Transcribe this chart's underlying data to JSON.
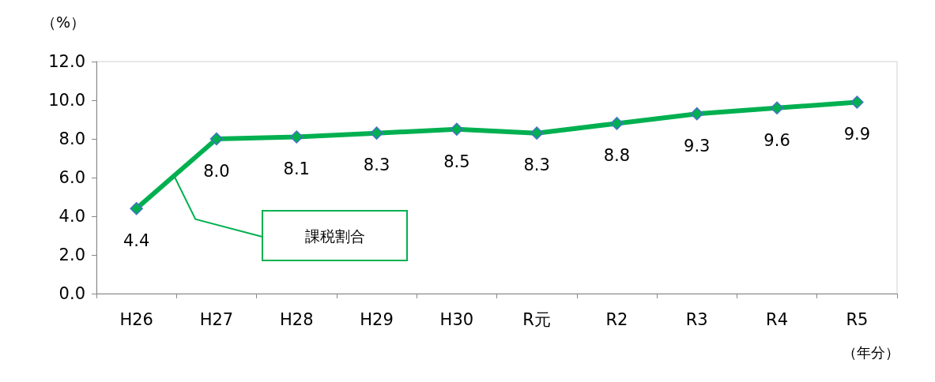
{
  "chart_data": {
    "type": "line",
    "ylabel": "（%）",
    "xlabel": "（年分）",
    "categories": [
      "H26",
      "H27",
      "H28",
      "H29",
      "H30",
      "R元",
      "R2",
      "R3",
      "R4",
      "R5"
    ],
    "series": [
      {
        "name": "課税割合",
        "color": "#00b050",
        "values": [
          4.4,
          8.0,
          8.1,
          8.3,
          8.5,
          8.3,
          8.8,
          9.3,
          9.6,
          9.9
        ]
      }
    ],
    "ylim": [
      0,
      12
    ],
    "yticks": [
      {
        "value": 0,
        "label": "0.0"
      },
      {
        "value": 2,
        "label": "2.0"
      },
      {
        "value": 4,
        "label": "4.0"
      },
      {
        "value": 6,
        "label": "6.0"
      },
      {
        "value": 8,
        "label": "8.0"
      },
      {
        "value": 10,
        "label": "10.0"
      },
      {
        "value": 12,
        "label": "12.0"
      }
    ],
    "value_labels": [
      "4.4",
      "8.0",
      "8.1",
      "8.3",
      "8.5",
      "8.3",
      "8.8",
      "9.3",
      "9.6",
      "9.9"
    ],
    "grid": false,
    "legend": false,
    "marker": "diamond",
    "line_style": "solid"
  }
}
